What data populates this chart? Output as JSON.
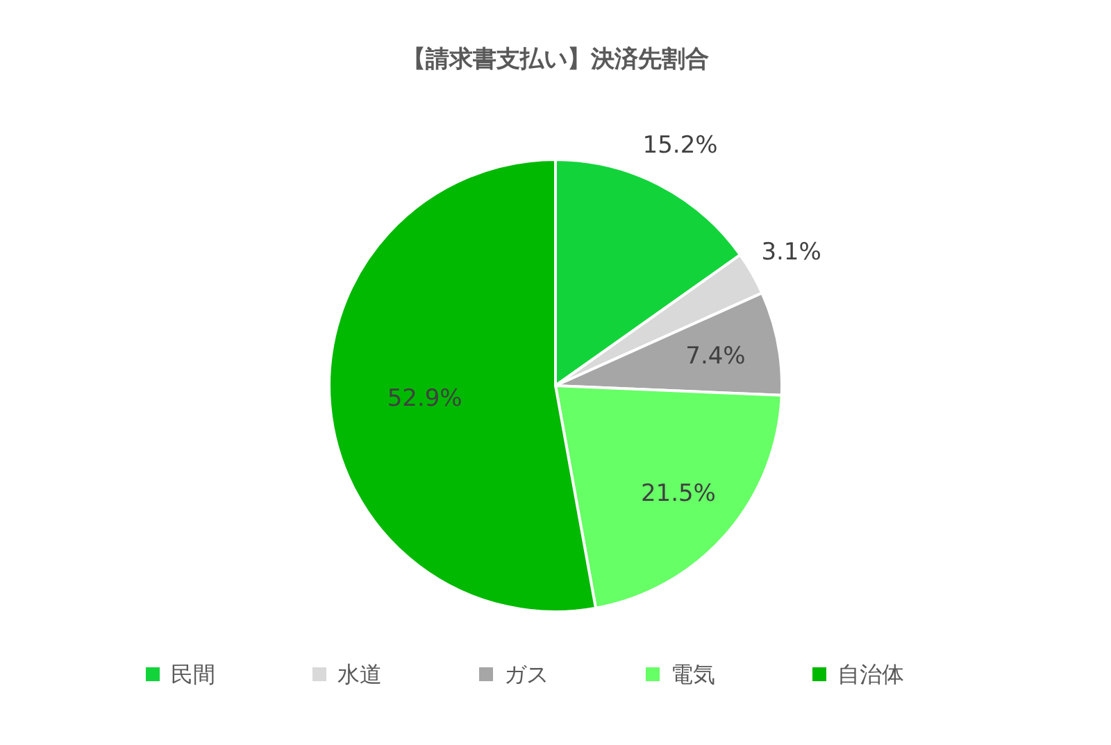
{
  "chart_data": {
    "type": "pie",
    "title": "【請求書支払い】決済先割合",
    "categories": [
      "民間",
      "水道",
      "ガス",
      "電気",
      "自治体"
    ],
    "values": [
      15.2,
      3.1,
      7.4,
      21.5,
      52.9
    ],
    "colors": [
      "#12d43a",
      "#d9d9d9",
      "#a6a6a6",
      "#66ff66",
      "#00b900"
    ],
    "value_labels": [
      "15.2%",
      "3.1%",
      "7.4%",
      "21.5%",
      "52.9%"
    ],
    "legend": "bottom"
  }
}
